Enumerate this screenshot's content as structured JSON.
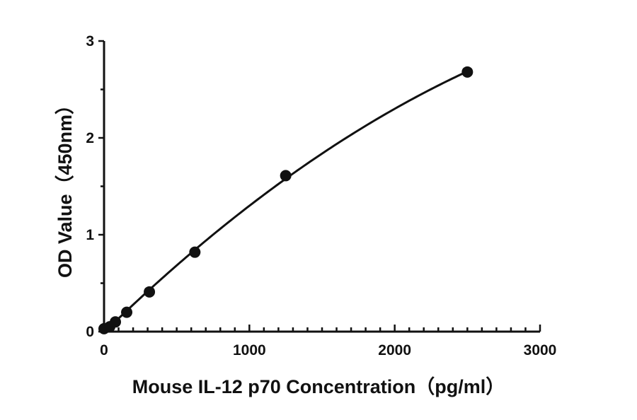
{
  "chart_data": {
    "type": "scatter",
    "title": "",
    "xlabel": "Mouse IL-12 p70 Concentration（pg/ml）",
    "ylabel": "OD Value（450nm）",
    "xlim": [
      0,
      3000
    ],
    "ylim": [
      0,
      3
    ],
    "x_ticks": [
      0,
      1000,
      2000,
      3000
    ],
    "y_ticks": [
      0,
      1,
      2,
      3
    ],
    "grid": false,
    "legend": "none",
    "series": [
      {
        "x": [
          0,
          39,
          78,
          156,
          312,
          625,
          1250,
          2500
        ],
        "y": [
          0.03,
          0.05,
          0.1,
          0.2,
          0.41,
          0.82,
          1.61,
          2.68
        ]
      }
    ],
    "fit_curve": true
  },
  "colors": {
    "ink": "#111111",
    "background": "#ffffff"
  }
}
